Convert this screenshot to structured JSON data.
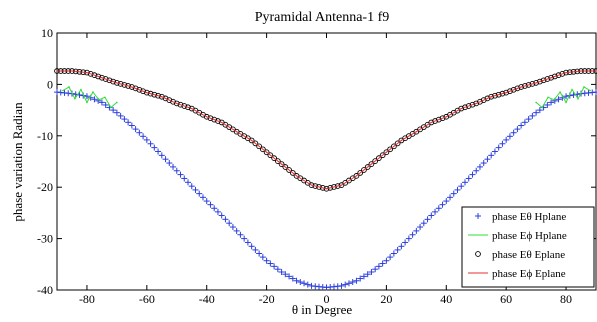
{
  "chart_data": {
    "type": "scatter",
    "title": "Pyramidal Antenna-1 f9",
    "xlabel": "θ in Degree",
    "ylabel": "phase variation Radian",
    "xlim": [
      -90,
      90
    ],
    "ylim": [
      -40,
      10
    ],
    "xticks": [
      -80,
      -60,
      -40,
      -20,
      0,
      20,
      40,
      60,
      80
    ],
    "yticks": [
      10,
      0,
      -10,
      -20,
      -30,
      -40
    ],
    "xtick_labels": [
      "-80",
      "-60",
      "-40",
      "-20",
      "0",
      "20",
      "40",
      "60",
      "80"
    ],
    "ytick_labels": [
      "10",
      "0",
      "-10",
      "-20",
      "-30",
      "-40"
    ],
    "grid": false,
    "legend_position": "bottom-right",
    "series": [
      {
        "name": "phase Eθ Hplane",
        "marker": "+",
        "color": "#2b3fdc",
        "x": [
          -90,
          -85,
          -80,
          -75,
          -70,
          -65,
          -60,
          -55,
          -50,
          -45,
          -40,
          -35,
          -30,
          -25,
          -20,
          -15,
          -10,
          -5,
          0,
          5,
          10,
          15,
          20,
          25,
          30,
          35,
          40,
          45,
          50,
          55,
          60,
          65,
          70,
          75,
          80,
          85,
          90
        ],
        "y": [
          -1.5,
          -1.8,
          -2.3,
          -3.5,
          -5.5,
          -8.0,
          -10.8,
          -13.8,
          -16.8,
          -19.8,
          -22.7,
          -25.5,
          -28.5,
          -31.5,
          -34.3,
          -36.5,
          -38.2,
          -39.2,
          -39.5,
          -39.2,
          -38.2,
          -36.5,
          -34.3,
          -31.5,
          -28.5,
          -25.5,
          -22.7,
          -19.8,
          -16.8,
          -13.8,
          -10.8,
          -8.0,
          -5.5,
          -3.5,
          -2.3,
          -1.8,
          -1.5
        ]
      },
      {
        "name": "phase Eϕ Hplane",
        "marker": "line",
        "color": "#33dd33",
        "x": [
          -88,
          -86,
          -84,
          -82,
          -80,
          -78,
          -76,
          -74,
          -72,
          -70,
          70,
          72,
          74,
          76,
          78,
          80,
          82,
          84,
          86,
          88
        ],
        "y": [
          -1.2,
          -0.5,
          -2.8,
          -1.0,
          -3.5,
          -1.5,
          -3.0,
          -2.5,
          -4.5,
          -3.5,
          -3.5,
          -4.5,
          -2.5,
          -3.0,
          -1.5,
          -3.5,
          -1.0,
          -2.8,
          -0.5,
          -1.2
        ]
      },
      {
        "name": "phase Eθ  Eplane",
        "marker": "o",
        "color": "#000000",
        "x": [
          -90,
          -85,
          -80,
          -75,
          -70,
          -65,
          -60,
          -55,
          -50,
          -45,
          -40,
          -35,
          -30,
          -25,
          -20,
          -15,
          -10,
          -5,
          0,
          5,
          10,
          15,
          20,
          25,
          30,
          35,
          40,
          45,
          50,
          55,
          60,
          65,
          70,
          75,
          80,
          85,
          90
        ],
        "y": [
          2.6,
          2.6,
          2.3,
          1.3,
          0.3,
          -0.5,
          -1.6,
          -2.4,
          -3.7,
          -4.7,
          -6.3,
          -7.4,
          -9.2,
          -10.9,
          -13.2,
          -15.5,
          -17.8,
          -19.6,
          -20.3,
          -19.6,
          -17.8,
          -15.5,
          -13.2,
          -10.9,
          -9.2,
          -7.4,
          -6.3,
          -4.7,
          -3.7,
          -2.4,
          -1.6,
          -0.5,
          0.3,
          1.3,
          2.3,
          2.6,
          2.6
        ]
      },
      {
        "name": "phase Eϕ Eplane",
        "marker": "line",
        "color": "#e03030",
        "x": [
          -90,
          -85,
          -80,
          -75,
          -70,
          -65,
          -60,
          -55,
          -50,
          -45,
          -40,
          -35,
          -30,
          -25,
          -20,
          -15,
          -10,
          -5,
          0,
          5,
          10,
          15,
          20,
          25,
          30,
          35,
          40,
          45,
          50,
          55,
          60,
          65,
          70,
          75,
          80,
          85,
          90
        ],
        "y": [
          2.6,
          2.6,
          2.3,
          1.3,
          0.3,
          -0.5,
          -1.6,
          -2.4,
          -3.7,
          -4.7,
          -6.3,
          -7.4,
          -9.2,
          -10.9,
          -13.2,
          -15.5,
          -17.8,
          -19.6,
          -20.3,
          -19.6,
          -17.8,
          -15.5,
          -13.2,
          -10.9,
          -9.2,
          -7.4,
          -6.3,
          -4.7,
          -3.7,
          -2.4,
          -1.6,
          -0.5,
          0.3,
          1.3,
          2.3,
          2.6,
          2.6
        ]
      }
    ]
  }
}
